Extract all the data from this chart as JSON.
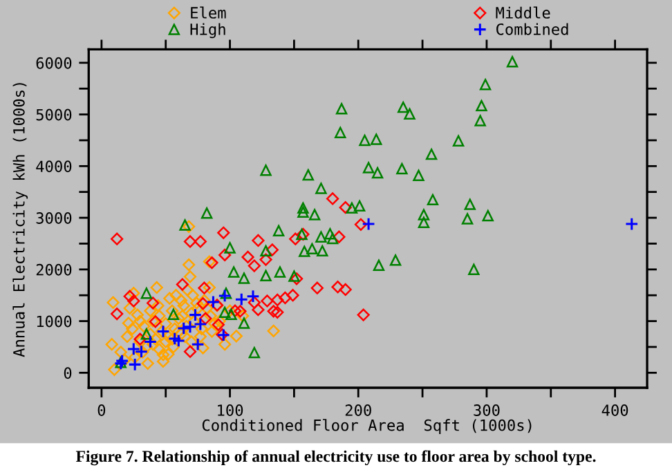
{
  "chart_data": {
    "type": "scatter",
    "xlabel": "Conditioned Floor Area  Sqft (1000s)",
    "ylabel": "Annual Electricity kWh (1000s)",
    "annotations": [
      "Figure 7. Relationship of annual electricity use to floor area by school type."
    ],
    "xlim": [
      -10,
      425
    ],
    "ylim": [
      -290,
      6260
    ],
    "xticks": [
      0,
      {
        "value": 50,
        "label": null
      },
      100,
      {
        "value": 150,
        "label": null
      },
      200,
      {
        "value": 250,
        "label": null
      },
      300,
      {
        "value": 350,
        "label": null
      },
      400
    ],
    "yticks": [
      0,
      {
        "value": 500,
        "label": null
      },
      1000,
      {
        "value": 1500,
        "label": null
      },
      2000,
      {
        "value": 2500,
        "label": null
      },
      3000,
      {
        "value": 3500,
        "label": null
      },
      4000,
      {
        "value": 4500,
        "label": null
      },
      5000,
      {
        "value": 5500,
        "label": null
      },
      6000
    ],
    "legend": "top",
    "grid": false,
    "series": [
      {
        "name": "Elem",
        "color": "#ffa500",
        "marker": "diamond",
        "x": [
          68,
          69,
          84,
          43,
          25,
          9,
          28,
          53,
          21,
          8,
          10,
          36,
          48,
          105,
          96,
          134,
          79,
          52,
          68,
          84,
          20,
          24,
          30,
          33,
          38,
          40,
          42,
          45,
          47,
          50,
          52,
          55,
          57,
          60,
          62,
          64,
          66,
          70,
          72,
          75,
          78,
          80,
          85,
          88,
          90,
          92,
          35,
          40,
          45,
          50,
          55,
          60,
          65,
          70,
          30,
          38,
          44,
          58,
          62,
          67,
          74,
          82,
          26,
          32,
          48,
          56,
          63,
          71,
          77,
          86,
          100,
          110,
          15,
          18,
          22
        ],
        "values": [
          2090,
          1860,
          1650,
          1650,
          1540,
          1360,
          1120,
          1440,
          960,
          550,
          60,
          180,
          220,
          710,
          550,
          810,
          480,
          360,
          2830,
          2150,
          700,
          850,
          600,
          900,
          750,
          1000,
          650,
          1100,
          800,
          950,
          700,
          1200,
          850,
          1050,
          750,
          1300,
          900,
          1150,
          1000,
          1250,
          850,
          1400,
          1100,
          950,
          1300,
          1000,
          500,
          550,
          450,
          600,
          650,
          800,
          700,
          600,
          1000,
          1200,
          1300,
          1500,
          1400,
          1600,
          1350,
          1250,
          300,
          400,
          350,
          500,
          1100,
          1500,
          700,
          800,
          1200,
          1100,
          400,
          250,
          1250
        ]
      },
      {
        "name": "Middle",
        "color": "#ff0000",
        "marker": "diamond",
        "x": [
          180,
          190,
          202,
          95,
          122,
          151,
          157,
          185,
          133,
          12,
          69,
          77,
          96,
          86,
          114,
          119,
          128,
          63,
          80,
          22,
          25,
          12,
          40,
          79,
          90,
          104,
          122,
          134,
          129,
          137,
          143,
          149,
          119,
          91,
          94,
          69,
          81,
          42,
          30,
          108,
          184,
          190,
          204,
          168,
          152,
          137
        ],
        "values": [
          3370,
          3200,
          2870,
          2710,
          2560,
          2590,
          2680,
          2630,
          2380,
          2590,
          2540,
          2540,
          2280,
          2130,
          2240,
          2070,
          2190,
          1710,
          1640,
          1480,
          1390,
          1140,
          1350,
          1340,
          1310,
          1200,
          1220,
          1190,
          1390,
          1410,
          1450,
          1500,
          1360,
          930,
          740,
          410,
          1050,
          990,
          650,
          1190,
          1660,
          1610,
          1120,
          1640,
          1820,
          1170
        ]
      },
      {
        "name": "High",
        "color": "#008000",
        "marker": "triangle",
        "x": [
          320,
          299,
          296,
          295,
          278,
          257,
          247,
          258,
          287,
          251,
          285,
          301,
          251,
          290,
          187,
          235,
          240,
          186,
          205,
          214,
          128,
          161,
          208,
          215,
          234,
          171,
          157,
          157,
          166,
          195,
          201,
          138,
          156,
          171,
          178,
          180,
          100,
          128,
          164,
          158,
          172,
          82,
          65,
          35,
          103,
          111,
          139,
          128,
          150,
          97,
          56,
          96,
          101,
          111,
          35,
          119,
          15,
          216,
          229
        ],
        "values": [
          6020,
          5580,
          5170,
          4880,
          4490,
          4230,
          3820,
          3350,
          3260,
          3060,
          2980,
          3040,
          2910,
          2000,
          5110,
          5140,
          5010,
          4650,
          4500,
          4520,
          3920,
          3830,
          3970,
          3870,
          3950,
          3570,
          3190,
          3110,
          3060,
          3190,
          3230,
          2750,
          2680,
          2630,
          2690,
          2600,
          2420,
          2360,
          2400,
          2350,
          2360,
          3090,
          2860,
          1540,
          1950,
          1830,
          1950,
          1880,
          1870,
          1540,
          1130,
          1170,
          1130,
          960,
          750,
          390,
          200,
          2080,
          2180
        ]
      },
      {
        "name": "Combined",
        "color": "#0000ff",
        "marker": "cross",
        "x": [
          413,
          208,
          87,
          96,
          109,
          118,
          73,
          69,
          64,
          77,
          48,
          38,
          57,
          60,
          75,
          95,
          25,
          31,
          16,
          15,
          26
        ],
        "values": [
          2880,
          2880,
          1370,
          1490,
          1420,
          1480,
          1120,
          890,
          860,
          940,
          800,
          600,
          660,
          620,
          550,
          730,
          460,
          410,
          230,
          180,
          160
        ]
      }
    ]
  }
}
